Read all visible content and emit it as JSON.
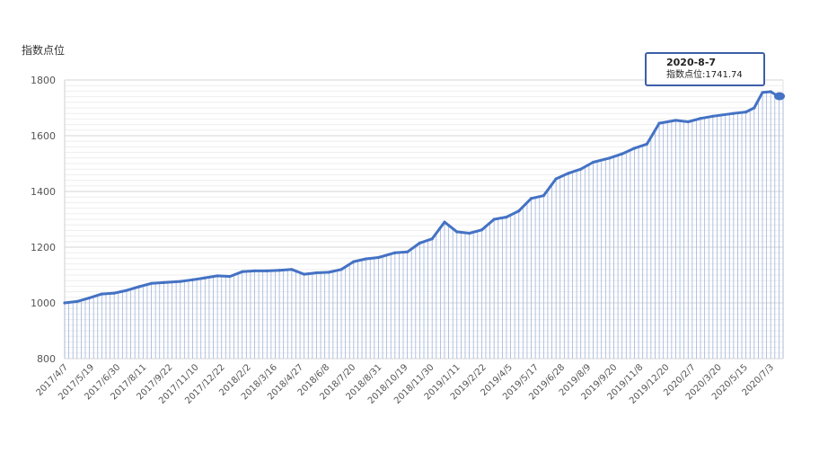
{
  "chart_data": {
    "type": "line",
    "ylabel": "指数点位",
    "ylim": [
      800,
      1800
    ],
    "yticks": [
      800,
      1000,
      1200,
      1400,
      1600,
      1800
    ],
    "x_tick_labels": [
      "2017/4/7",
      "2017/5/19",
      "2017/6/30",
      "2017/8/11",
      "2017/9/22",
      "2017/11/10",
      "2017/12/22",
      "2018/2/2",
      "2018/3/16",
      "2018/4/27",
      "2018/6/8",
      "2018/7/20",
      "2018/8/31",
      "2018/10/19",
      "2018/11/30",
      "2019/1/11",
      "2019/2/22",
      "2019/4/5",
      "2019/5/17",
      "2019/6/28",
      "2019/8/9",
      "2019/9/20",
      "2019/11/8",
      "2019/12/20",
      "2020/2/7",
      "2020/3/20",
      "2020/5/15",
      "2020/7/3"
    ],
    "series": [
      {
        "color": "#4472c4",
        "x": [
          "2017-04-07",
          "2017-04-28",
          "2017-05-19",
          "2017-06-09",
          "2017-06-30",
          "2017-07-21",
          "2017-08-11",
          "2017-09-01",
          "2017-09-22",
          "2017-10-20",
          "2017-11-10",
          "2017-12-01",
          "2017-12-22",
          "2018-01-12",
          "2018-02-02",
          "2018-02-23",
          "2018-03-16",
          "2018-04-06",
          "2018-04-27",
          "2018-05-18",
          "2018-06-08",
          "2018-06-29",
          "2018-07-20",
          "2018-08-10",
          "2018-08-31",
          "2018-09-21",
          "2018-10-19",
          "2018-11-09",
          "2018-11-30",
          "2018-12-21",
          "2019-01-11",
          "2019-02-01",
          "2019-02-22",
          "2019-03-15",
          "2019-04-05",
          "2019-04-26",
          "2019-05-17",
          "2019-06-07",
          "2019-06-28",
          "2019-07-19",
          "2019-08-09",
          "2019-08-30",
          "2019-09-20",
          "2019-10-18",
          "2019-11-08",
          "2019-11-29",
          "2019-12-20",
          "2020-01-10",
          "2020-02-07",
          "2020-02-28",
          "2020-03-20",
          "2020-04-10",
          "2020-05-15",
          "2020-06-05",
          "2020-06-19",
          "2020-07-03",
          "2020-07-17",
          "2020-07-31",
          "2020-08-07"
        ],
        "values": [
          1000,
          1005,
          1018,
          1032,
          1035,
          1045,
          1058,
          1070,
          1073,
          1077,
          1083,
          1090,
          1097,
          1095,
          1112,
          1115,
          1115,
          1117,
          1120,
          1103,
          1108,
          1110,
          1120,
          1148,
          1158,
          1163,
          1180,
          1183,
          1215,
          1230,
          1290,
          1255,
          1250,
          1262,
          1300,
          1308,
          1330,
          1375,
          1385,
          1445,
          1465,
          1480,
          1505,
          1520,
          1535,
          1555,
          1570,
          1645,
          1655,
          1650,
          1662,
          1670,
          1680,
          1685,
          1700,
          1755,
          1758,
          1740,
          1741.74
        ]
      }
    ],
    "tooltip": {
      "date": "2020-8-7",
      "label": "指数点位:1741.74"
    }
  }
}
